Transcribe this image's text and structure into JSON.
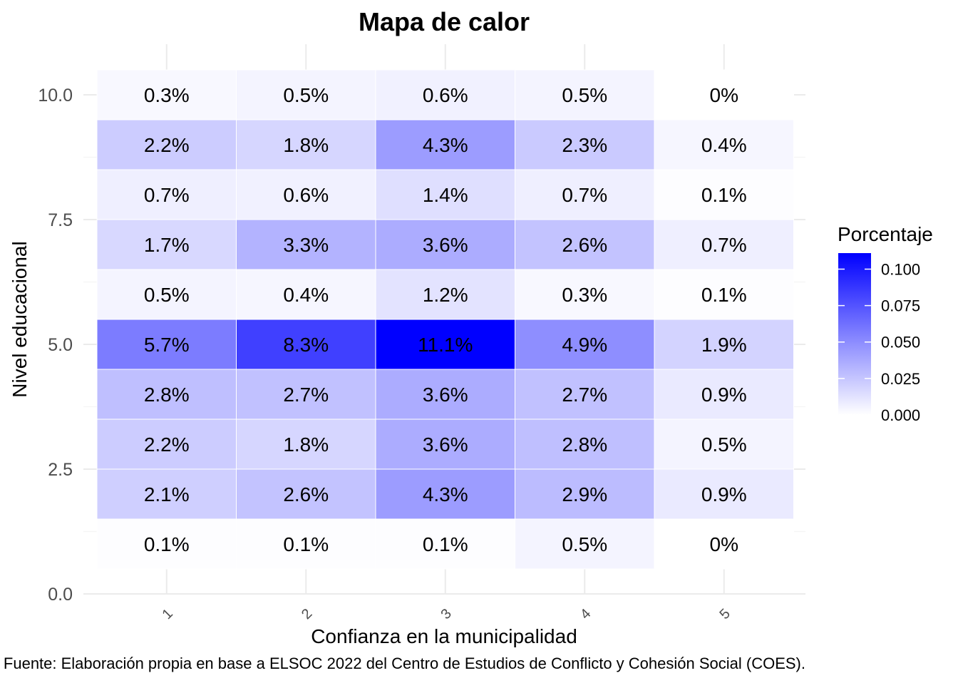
{
  "chart_data": {
    "type": "heatmap",
    "title": "Mapa de calor",
    "xlabel": "Confianza en la municipalidad",
    "ylabel": "Nivel educacional",
    "caption": "Fuente: Elaboración propia en base a ELSOC 2022 del Centro de Estudios de Conflicto y Cohesión Social (COES).",
    "x_categories": [
      "1",
      "2",
      "3",
      "4",
      "5"
    ],
    "y_values": [
      1,
      2,
      3,
      4,
      5,
      6,
      7,
      8,
      9,
      10
    ],
    "y_ticks": [
      "0.0",
      "2.5",
      "5.0",
      "7.5",
      "10.0"
    ],
    "y_tick_values": [
      0,
      2.5,
      5,
      7.5,
      10
    ],
    "ylim": [
      0,
      10.5
    ],
    "cells": [
      {
        "y": 10,
        "values": [
          0.003,
          0.005,
          0.006,
          0.005,
          0.0
        ],
        "labels": [
          "0.3%",
          "0.5%",
          "0.6%",
          "0.5%",
          "0%"
        ]
      },
      {
        "y": 9,
        "values": [
          0.022,
          0.018,
          0.043,
          0.023,
          0.004
        ],
        "labels": [
          "2.2%",
          "1.8%",
          "4.3%",
          "2.3%",
          "0.4%"
        ]
      },
      {
        "y": 8,
        "values": [
          0.007,
          0.006,
          0.014,
          0.007,
          0.001
        ],
        "labels": [
          "0.7%",
          "0.6%",
          "1.4%",
          "0.7%",
          "0.1%"
        ]
      },
      {
        "y": 7,
        "values": [
          0.017,
          0.033,
          0.036,
          0.026,
          0.007
        ],
        "labels": [
          "1.7%",
          "3.3%",
          "3.6%",
          "2.6%",
          "0.7%"
        ]
      },
      {
        "y": 6,
        "values": [
          0.005,
          0.004,
          0.012,
          0.003,
          0.001
        ],
        "labels": [
          "0.5%",
          "0.4%",
          "1.2%",
          "0.3%",
          "0.1%"
        ]
      },
      {
        "y": 5,
        "values": [
          0.057,
          0.083,
          0.111,
          0.049,
          0.019
        ],
        "labels": [
          "5.7%",
          "8.3%",
          "11.1%",
          "4.9%",
          "1.9%"
        ]
      },
      {
        "y": 4,
        "values": [
          0.028,
          0.027,
          0.036,
          0.027,
          0.009
        ],
        "labels": [
          "2.8%",
          "2.7%",
          "3.6%",
          "2.7%",
          "0.9%"
        ]
      },
      {
        "y": 3,
        "values": [
          0.022,
          0.018,
          0.036,
          0.028,
          0.005
        ],
        "labels": [
          "2.2%",
          "1.8%",
          "3.6%",
          "2.8%",
          "0.5%"
        ]
      },
      {
        "y": 2,
        "values": [
          0.021,
          0.026,
          0.043,
          0.029,
          0.009
        ],
        "labels": [
          "2.1%",
          "2.6%",
          "4.3%",
          "2.9%",
          "0.9%"
        ]
      },
      {
        "y": 1,
        "values": [
          0.001,
          0.001,
          0.001,
          0.005,
          0.0
        ],
        "labels": [
          "0.1%",
          "0.1%",
          "0.1%",
          "0.5%",
          "0%"
        ]
      }
    ],
    "legend": {
      "title": "Porcentaje",
      "position": "right",
      "ticks": [
        "0.000",
        "0.025",
        "0.050",
        "0.075",
        "0.100"
      ],
      "tick_values": [
        0,
        0.025,
        0.05,
        0.075,
        0.1
      ],
      "range": [
        0,
        0.111
      ],
      "low_color": "#ffffff",
      "high_color": "#0000ff"
    },
    "grid": true
  }
}
